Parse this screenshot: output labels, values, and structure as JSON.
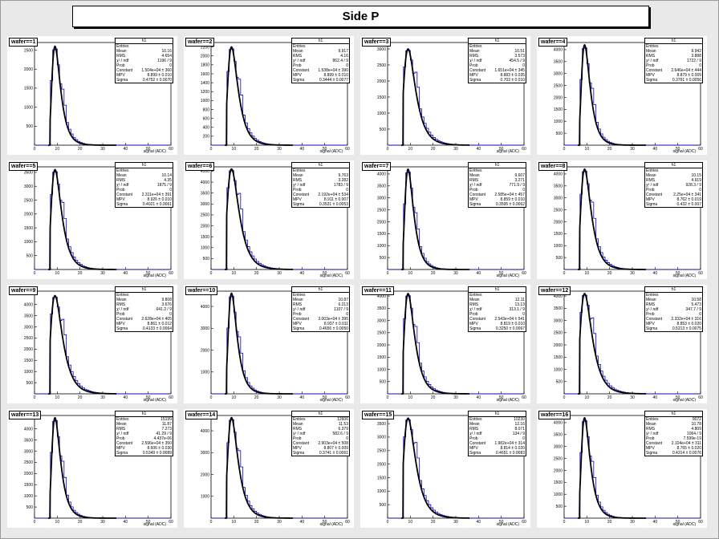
{
  "title": "Side P",
  "colors": {
    "hist": "#0000cc",
    "fit": "#000000",
    "background": "#e9e9e9"
  },
  "stat_labels": {
    "name": "h1",
    "entries": "Entries",
    "mean": "Mean",
    "rms": "RMS",
    "chi2": "χ² / ndf",
    "prob": "Prob",
    "constant": "Constant",
    "mpv": "MPV",
    "sigma": "Sigma"
  },
  "chart_data": [
    {
      "type": "line",
      "label": "wafer==1",
      "xlabel": "signal (ADC)",
      "xlim": [
        0,
        60
      ],
      "xticks": [
        "0",
        "10",
        "20",
        "30",
        "40",
        "50",
        "60"
      ],
      "ylim": [
        0,
        2700
      ],
      "yticks": [
        500,
        1000,
        1500,
        2000,
        2500
      ],
      "peak": 2600,
      "stats": {
        "entries": "",
        "mean": "10.16",
        "rms": "4.654",
        "chi2": "1196 / 9",
        "prob": "0",
        "constant": "1.504e+04 ± 360",
        "mpv": "8.899 ± 0.010",
        "sigma": "0.4752 ± 0.0070"
      }
    },
    {
      "type": "line",
      "label": "wafer==2",
      "xlabel": "signal (ADC)",
      "xlim": [
        0,
        60
      ],
      "xticks": [
        "0",
        "10",
        "20",
        "30",
        "40",
        "50",
        "60"
      ],
      "ylim": [
        0,
        2300
      ],
      "yticks": [
        200,
        400,
        600,
        800,
        1000,
        1200,
        1400,
        1600,
        1800,
        2000,
        2200
      ],
      "peak": 2200,
      "stats": {
        "entries": "",
        "mean": "9.917",
        "rms": "4.16",
        "chi2": "862.4 / 9",
        "prob": "0",
        "constant": "1.538e+04 ± 390",
        "mpv": "8.899 ± 0.010",
        "sigma": "0.3444 ± 0.0077"
      }
    },
    {
      "type": "line",
      "label": "wafer==3",
      "xlabel": "signal (ADC)",
      "xlim": [
        0,
        60
      ],
      "xticks": [
        "0",
        "10",
        "20",
        "30",
        "40",
        "50",
        "60"
      ],
      "ylim": [
        0,
        3200
      ],
      "yticks": [
        500,
        1000,
        1500,
        2000,
        2500,
        3000
      ],
      "peak": 3000,
      "stats": {
        "entries": "",
        "mean": "10.51",
        "rms": "3.573",
        "chi2": "454.5 / 9",
        "prob": "0",
        "constant": "1.651e+04 ± 345",
        "mpv": "8.883 ± 0.035",
        "sigma": "0.703 ± 0.010"
      }
    },
    {
      "type": "line",
      "label": "wafer==4",
      "xlabel": "signal (ADC)",
      "xlim": [
        0,
        60
      ],
      "xticks": [
        "0",
        "10",
        "20",
        "30",
        "40",
        "50",
        "60"
      ],
      "ylim": [
        0,
        4300
      ],
      "yticks": [
        500,
        1000,
        1500,
        2000,
        2500,
        3000,
        3500,
        4000
      ],
      "peak": 4200,
      "stats": {
        "entries": "",
        "mean": "9.942",
        "rms": "3.888",
        "chi2": "1722 / 9",
        "prob": "0",
        "constant": "2.646e+04 ± 444",
        "mpv": "8.879 ± 0.009",
        "sigma": "0.3761 ± 0.0056"
      }
    },
    {
      "type": "line",
      "label": "wafer==5",
      "xlabel": "signal (ADC)",
      "xlim": [
        0,
        60
      ],
      "xticks": [
        "0",
        "10",
        "20",
        "30",
        "40",
        "50",
        "60"
      ],
      "ylim": [
        0,
        3700
      ],
      "yticks": [
        500,
        1000,
        1500,
        2000,
        2500,
        3000,
        3500
      ],
      "peak": 3600,
      "stats": {
        "entries": "",
        "mean": "10.14",
        "rms": "4.35",
        "chi2": "1875 / 9",
        "prob": "0",
        "constant": "2.311e+04 ± 391",
        "mpv": "8.926 ± 0.010",
        "sigma": "0.4021 ± 0.0061"
      }
    },
    {
      "type": "line",
      "label": "wafer==6",
      "xlabel": "signal (ADC)",
      "xlim": [
        0,
        60
      ],
      "xticks": [
        "0",
        "10",
        "20",
        "30",
        "40",
        "50",
        "60"
      ],
      "ylim": [
        0,
        4700
      ],
      "yticks": [
        500,
        1000,
        1500,
        2000,
        2500,
        3000,
        3500,
        4000,
        4500
      ],
      "peak": 4600,
      "stats": {
        "entries": "",
        "mean": "9.763",
        "rms": "3.282",
        "chi2": "1783 / 9",
        "prob": "0",
        "constant": "2.192e+04 ± 534",
        "mpv": "8.911 ± 0.007",
        "sigma": "0.3531 ± 0.0053"
      }
    },
    {
      "type": "line",
      "label": "wafer==7",
      "xlabel": "signal (ADC)",
      "xlim": [
        0,
        60
      ],
      "xticks": [
        "0",
        "10",
        "20",
        "30",
        "40",
        "50",
        "60"
      ],
      "ylim": [
        0,
        4300
      ],
      "yticks": [
        500,
        1000,
        1500,
        2000,
        2500,
        3000,
        3500,
        4000
      ],
      "peak": 4200,
      "stats": {
        "entries": "",
        "mean": "9.607",
        "rms": "3.271",
        "chi2": "771.9 / 9",
        "prob": "0",
        "constant": "2.585e+04 ± 457",
        "mpv": "8.859 ± 0.010",
        "sigma": "0.3595 ± 0.0062"
      }
    },
    {
      "type": "line",
      "label": "wafer==8",
      "xlabel": "signal (ADC)",
      "xlim": [
        0,
        60
      ],
      "xticks": [
        "0",
        "10",
        "20",
        "30",
        "40",
        "50",
        "60"
      ],
      "ylim": [
        0,
        4300
      ],
      "yticks": [
        500,
        1000,
        1500,
        2000,
        2500,
        3000,
        3500,
        4000
      ],
      "peak": 4200,
      "stats": {
        "entries": "",
        "mean": "10.15",
        "rms": "4.919",
        "chi2": "928.3 / 9",
        "prob": "0",
        "constant": "2.25e+04 ± 341",
        "mpv": "8.762 ± 0.019",
        "sigma": "0.432 ± 0.007"
      }
    },
    {
      "type": "line",
      "label": "wafer==9",
      "xlabel": "signal (ADC)",
      "xlim": [
        0,
        60
      ],
      "xticks": [
        "0",
        "10",
        "20",
        "30",
        "40",
        "50",
        "60"
      ],
      "ylim": [
        0,
        4600
      ],
      "yticks": [
        500,
        1000,
        1500,
        2000,
        2500,
        3000,
        3500,
        4000,
        4500
      ],
      "peak": 4400,
      "stats": {
        "entries": "",
        "mean": "9.808",
        "rms": "3.676",
        "chi2": "641.2 / 9",
        "prob": "0",
        "constant": "2.628e+04 ± 405",
        "mpv": "8.861 ± 0.012",
        "sigma": "0.4133 ± 0.0064"
      }
    },
    {
      "type": "line",
      "label": "wafer==10",
      "xlabel": "signal (ADC)",
      "xlim": [
        0,
        60
      ],
      "xticks": [
        "0",
        "10",
        "20",
        "30",
        "40",
        "50",
        "60"
      ],
      "ylim": [
        0,
        4700
      ],
      "yticks": [
        1000,
        2000,
        3000,
        4000
      ],
      "peak": 4600,
      "stats": {
        "entries": "",
        "mean": "10.87",
        "rms": "6.213",
        "chi2": "1107 / 9",
        "prob": "0",
        "constant": "3.003e+04 ± 395",
        "mpv": "8.937 ± 0.011",
        "sigma": "0.4656 ± 0.0050"
      }
    },
    {
      "type": "line",
      "label": "wafer==11",
      "xlabel": "signal (ADC)",
      "xlim": [
        0,
        60
      ],
      "xticks": [
        "0",
        "10",
        "20",
        "30",
        "40",
        "50",
        "60"
      ],
      "ylim": [
        0,
        4200
      ],
      "yticks": [
        500,
        1000,
        1500,
        2000,
        2500,
        3000,
        3500,
        4000
      ],
      "peak": 4100,
      "stats": {
        "entries": "",
        "mean": "12.11",
        "rms": "13.13",
        "chi2": "313.1 / 9",
        "prob": "0",
        "constant": "2.543e+04 ± 541",
        "mpv": "8.819 ± 0.010",
        "sigma": "0.3250 ± 0.0067"
      }
    },
    {
      "type": "line",
      "label": "wafer==12",
      "xlabel": "signal (ADC)",
      "xlim": [
        0,
        60
      ],
      "xticks": [
        "0",
        "10",
        "20",
        "30",
        "40",
        "50",
        "60"
      ],
      "ylim": [
        0,
        4200
      ],
      "yticks": [
        500,
        1000,
        1500,
        2000,
        2500,
        3000,
        3500,
        4000
      ],
      "peak": 4100,
      "stats": {
        "entries": "",
        "mean": "10.58",
        "rms": "5.473",
        "chi2": "347.7 / 9",
        "prob": "0",
        "constant": "2.332e+04 ± 316",
        "mpv": "8.853 ± 0.020",
        "sigma": "0.5213 ± 0.0075"
      }
    },
    {
      "type": "line",
      "label": "wafer==13",
      "xlabel": "signal (ADC)",
      "xlim": [
        0,
        60
      ],
      "xticks": [
        "0",
        "10",
        "20",
        "30",
        "40",
        "50",
        "60"
      ],
      "ylim": [
        0,
        4600
      ],
      "yticks": [
        500,
        1000,
        1500,
        2000,
        2500,
        3000,
        3500,
        4000,
        4500
      ],
      "peak": 4500,
      "stats": {
        "entries": "15199",
        "mean": "11.87",
        "rms": "7.273",
        "chi2": "41.29 / 9",
        "prob": "4.437e-06",
        "constant": "2.596e+04 ± 350",
        "mpv": "8.606 ± 0.030",
        "sigma": "0.5349 ± 0.0089"
      }
    },
    {
      "type": "line",
      "label": "wafer==14",
      "xlabel": "signal (ADC)",
      "xlim": [
        0,
        60
      ],
      "xticks": [
        "0",
        "10",
        "20",
        "30",
        "40",
        "50",
        "60"
      ],
      "ylim": [
        0,
        4700
      ],
      "yticks": [
        1000,
        2000,
        3000,
        4000
      ],
      "peak": 4600,
      "stats": {
        "entries": "12606",
        "mean": "11.53",
        "rms": "6.379",
        "chi2": "582.6 / 9",
        "prob": "0",
        "constant": "2.903e+04 ± 508",
        "mpv": "8.807 ± 0.009",
        "sigma": "0.3741 ± 0.0061"
      }
    },
    {
      "type": "line",
      "label": "wafer==15",
      "xlabel": "signal (ADC)",
      "xlim": [
        0,
        60
      ],
      "xticks": [
        "0",
        "10",
        "20",
        "30",
        "40",
        "50",
        "60"
      ],
      "ylim": [
        0,
        3800
      ],
      "yticks": [
        500,
        1000,
        1500,
        2000,
        2500,
        3000,
        3500
      ],
      "peak": 3700,
      "stats": {
        "entries": "10230",
        "mean": "12.16",
        "rms": "8.071",
        "chi2": "134 / 9",
        "prob": "0",
        "constant": "1.982e+04 ± 314",
        "mpv": "8.814 ± 0.020",
        "sigma": "0.4651 ± 0.0083"
      }
    },
    {
      "type": "line",
      "label": "wafer==16",
      "xlabel": "signal (ADC)",
      "xlim": [
        0,
        60
      ],
      "xticks": [
        "0",
        "10",
        "20",
        "30",
        "40",
        "50",
        "60"
      ],
      "ylim": [
        0,
        4300
      ],
      "yticks": [
        500,
        1000,
        1500,
        2000,
        2500,
        3000,
        3500,
        4000
      ],
      "peak": 4200,
      "stats": {
        "entries": "9072",
        "mean": "10.78",
        "rms": "4.809",
        "chi2": "1064 / 9",
        "prob": "7.599e-19",
        "constant": "2.104e+04 ± 311",
        "mpv": "8.765 ± 0.020",
        "sigma": "0.4314 ± 0.0076"
      }
    }
  ]
}
